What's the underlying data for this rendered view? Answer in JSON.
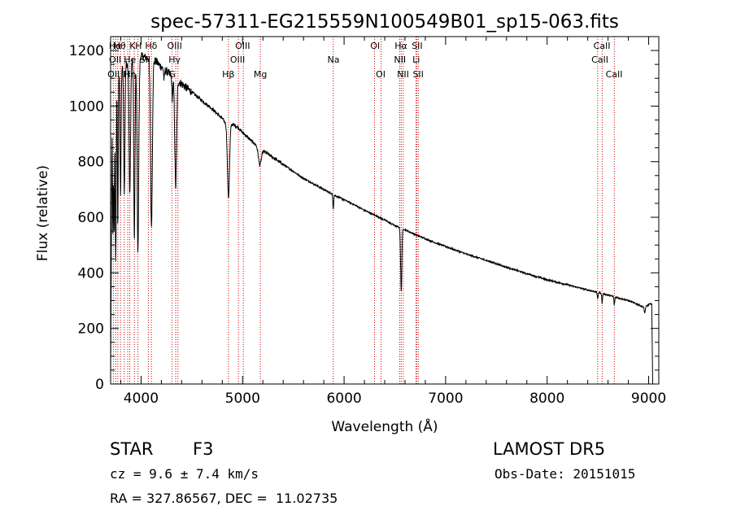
{
  "chart_data": {
    "type": "line",
    "title": "spec-57311-EG215559N100549B01_sp15-063.fits",
    "xlabel": "Wavelength (Å)",
    "ylabel": "Flux (relative)",
    "xlim": [
      3700,
      9100
    ],
    "ylim": [
      0,
      1250
    ],
    "xticks": [
      4000,
      5000,
      6000,
      7000,
      8000,
      9000
    ],
    "yticks": [
      0,
      200,
      400,
      600,
      800,
      1000,
      1200
    ],
    "grid": false,
    "continuum": [
      [
        3700,
        0
      ],
      [
        3715,
        1000
      ],
      [
        3730,
        1080
      ],
      [
        3760,
        1110
      ],
      [
        3800,
        1130
      ],
      [
        3850,
        1150
      ],
      [
        3900,
        1160
      ],
      [
        3950,
        1170
      ],
      [
        4000,
        1180
      ],
      [
        4050,
        1175
      ],
      [
        4100,
        1170
      ],
      [
        4150,
        1160
      ],
      [
        4200,
        1140
      ],
      [
        4300,
        1110
      ],
      [
        4400,
        1080
      ],
      [
        4500,
        1050
      ],
      [
        4600,
        1020
      ],
      [
        4700,
        990
      ],
      [
        4800,
        955
      ],
      [
        4850,
        930
      ],
      [
        4900,
        935
      ],
      [
        4950,
        925
      ],
      [
        5000,
        905
      ],
      [
        5100,
        870
      ],
      [
        5200,
        840
      ],
      [
        5300,
        815
      ],
      [
        5400,
        790
      ],
      [
        5500,
        765
      ],
      [
        5600,
        740
      ],
      [
        5700,
        720
      ],
      [
        5800,
        700
      ],
      [
        5900,
        680
      ],
      [
        6000,
        663
      ],
      [
        6100,
        645
      ],
      [
        6200,
        625
      ],
      [
        6300,
        608
      ],
      [
        6400,
        590
      ],
      [
        6500,
        570
      ],
      [
        6600,
        555
      ],
      [
        6700,
        538
      ],
      [
        6800,
        523
      ],
      [
        6900,
        508
      ],
      [
        7000,
        495
      ],
      [
        7200,
        468
      ],
      [
        7400,
        445
      ],
      [
        7600,
        420
      ],
      [
        7800,
        397
      ],
      [
        8000,
        375
      ],
      [
        8200,
        357
      ],
      [
        8400,
        338
      ],
      [
        8500,
        330
      ],
      [
        8600,
        320
      ],
      [
        8700,
        310
      ],
      [
        8800,
        300
      ],
      [
        8900,
        285
      ],
      [
        8960,
        275
      ],
      [
        9000,
        285
      ],
      [
        9030,
        290
      ],
      [
        9040,
        0
      ]
    ],
    "absorption": [
      {
        "center": 3722,
        "depth": 500,
        "width": 4
      },
      {
        "center": 3734,
        "depth": 550,
        "width": 4
      },
      {
        "center": 3750,
        "depth": 650,
        "width": 5
      },
      {
        "center": 3771,
        "depth": 550,
        "width": 4
      },
      {
        "center": 3798,
        "depth": 450,
        "width": 5
      },
      {
        "center": 3835,
        "depth": 450,
        "width": 6
      },
      {
        "center": 3889,
        "depth": 480,
        "width": 7
      },
      {
        "center": 3934,
        "depth": 650,
        "width": 6
      },
      {
        "center": 3969,
        "depth": 700,
        "width": 8
      },
      {
        "center": 4102,
        "depth": 600,
        "width": 9
      },
      {
        "center": 4227,
        "depth": 40,
        "width": 4
      },
      {
        "center": 4308,
        "depth": 80,
        "width": 5
      },
      {
        "center": 4341,
        "depth": 390,
        "width": 9
      },
      {
        "center": 4861,
        "depth": 260,
        "width": 10
      },
      {
        "center": 5170,
        "depth": 60,
        "width": 14
      },
      {
        "center": 5893,
        "depth": 50,
        "width": 4
      },
      {
        "center": 6563,
        "depth": 230,
        "width": 6
      },
      {
        "center": 8498,
        "depth": 25,
        "width": 4
      },
      {
        "center": 8542,
        "depth": 35,
        "width": 4
      },
      {
        "center": 8662,
        "depth": 30,
        "width": 4
      },
      {
        "center": 8962,
        "depth": 20,
        "width": 5
      }
    ],
    "line_markers": [
      {
        "wavelength": 3727,
        "label": "OII"
      },
      {
        "wavelength": 3750,
        "label": "Hθ"
      },
      {
        "wavelength": 3771,
        "label": "Hη"
      },
      {
        "wavelength": 3798,
        "label": "Hι"
      },
      {
        "wavelength": 3835,
        "label": "Hη"
      },
      {
        "wavelength": 3869,
        "label": "Ne"
      },
      {
        "wavelength": 3889,
        "label": "HeI"
      },
      {
        "wavelength": 3934,
        "label": "K"
      },
      {
        "wavelength": 3969,
        "label": "H"
      },
      {
        "wavelength": 4072,
        "label": "SII"
      },
      {
        "wavelength": 4102,
        "label": "Hδ"
      },
      {
        "wavelength": 4304,
        "label": "G"
      },
      {
        "wavelength": 4341,
        "label": "Hγ"
      },
      {
        "wavelength": 4363,
        "label": "OIII"
      },
      {
        "wavelength": 4861,
        "label": "Hβ"
      },
      {
        "wavelength": 4959,
        "label": "OIII"
      },
      {
        "wavelength": 5007,
        "label": "OIII"
      },
      {
        "wavelength": 5175,
        "label": "Mg"
      },
      {
        "wavelength": 5893,
        "label": "Na"
      },
      {
        "wavelength": 6300,
        "label": "OI"
      },
      {
        "wavelength": 6364,
        "label": "OI"
      },
      {
        "wavelength": 6548,
        "label": "NII"
      },
      {
        "wavelength": 6563,
        "label": "Hα"
      },
      {
        "wavelength": 6583,
        "label": "NII"
      },
      {
        "wavelength": 6707,
        "label": "Li"
      },
      {
        "wavelength": 6716,
        "label": "SII"
      },
      {
        "wavelength": 6731,
        "label": "SII"
      },
      {
        "wavelength": 8498,
        "label": "CaII"
      },
      {
        "wavelength": 8542,
        "label": "CaII"
      },
      {
        "wavelength": 8662,
        "label": "CaII"
      }
    ],
    "line_labels": [
      {
        "text": "Hα",
        "x": 3745,
        "row": 0
      },
      {
        "text": "Hθ",
        "x": 3790,
        "row": 0
      },
      {
        "text": "K",
        "x": 3915,
        "row": 0
      },
      {
        "text": "H",
        "x": 3975,
        "row": 0
      },
      {
        "text": "Hδ",
        "x": 4100,
        "row": 0
      },
      {
        "text": "OIII",
        "x": 4330,
        "row": 0
      },
      {
        "text": "OIII",
        "x": 5000,
        "row": 0
      },
      {
        "text": "OI",
        "x": 6305,
        "row": 0
      },
      {
        "text": "Hα",
        "x": 6560,
        "row": 0
      },
      {
        "text": "SII",
        "x": 6720,
        "row": 0
      },
      {
        "text": "CaII",
        "x": 8540,
        "row": 0
      },
      {
        "text": "OII",
        "x": 3745,
        "row": 1
      },
      {
        "text": "He",
        "x": 3890,
        "row": 1
      },
      {
        "text": "SII",
        "x": 4040,
        "row": 1
      },
      {
        "text": "Hγ",
        "x": 4330,
        "row": 1
      },
      {
        "text": "OIII",
        "x": 4950,
        "row": 1
      },
      {
        "text": "Na",
        "x": 5895,
        "row": 1
      },
      {
        "text": "NII",
        "x": 6550,
        "row": 1
      },
      {
        "text": "Li",
        "x": 6710,
        "row": 1
      },
      {
        "text": "CaII",
        "x": 8520,
        "row": 1
      },
      {
        "text": "OII",
        "x": 3730,
        "row": 2
      },
      {
        "text": "H",
        "x": 3855,
        "row": 2
      },
      {
        "text": "Hη",
        "x": 3890,
        "row": 2
      },
      {
        "text": "G",
        "x": 4305,
        "row": 2
      },
      {
        "text": "Hβ",
        "x": 4860,
        "row": 2
      },
      {
        "text": "Mg",
        "x": 5175,
        "row": 2
      },
      {
        "text": "OI",
        "x": 6360,
        "row": 2
      },
      {
        "text": "NII",
        "x": 6580,
        "row": 2
      },
      {
        "text": "SII",
        "x": 6730,
        "row": 2
      },
      {
        "text": "CaII",
        "x": 8660,
        "row": 2
      }
    ],
    "line_color": "#000000",
    "marker_color": "#cc0000"
  },
  "info": {
    "object_class": "STAR",
    "subclass": "F3",
    "survey": "LAMOST DR5",
    "redshift": "cz = 9.6 ± 7.4 km/s",
    "obs_date": "Obs-Date: 20151015",
    "coords": "RA = 327.86567, DEC =  11.02735"
  }
}
